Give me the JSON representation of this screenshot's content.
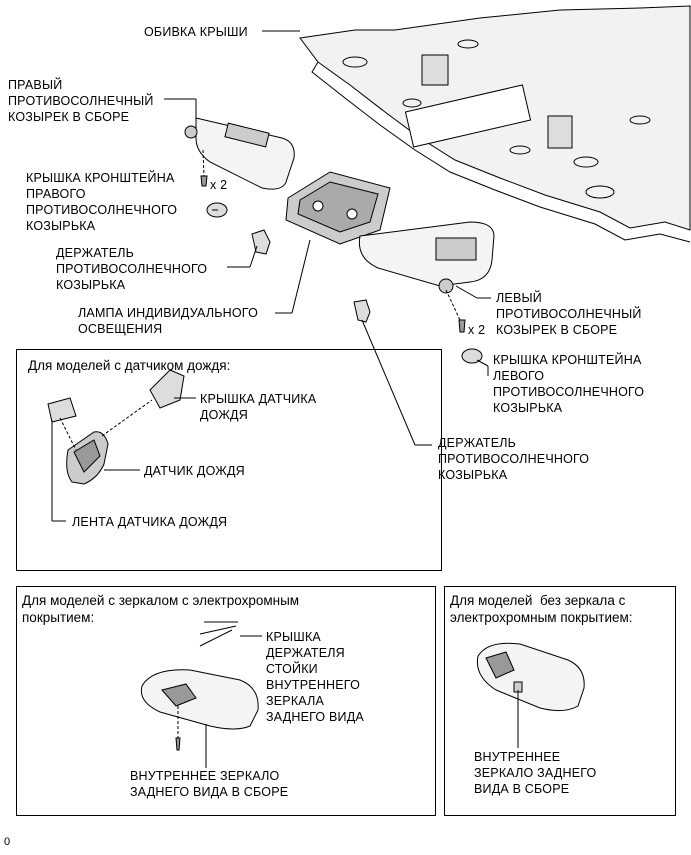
{
  "labels": {
    "headliner": "ОБИВКА КРЫШИ",
    "right_visor": "ПРАВЫЙ\nПРОТИВОСОЛНЕЧНЫЙ\nКОЗЫРЕК В СБОРЕ",
    "right_bracket_cover": "КРЫШКА КРОНШТЕЙНА\nПРАВОГО\nПРОТИВОСОЛНЕЧНОГО\nКОЗЫРЬКА",
    "visor_holder_left": "ДЕРЖАТЕЛЬ\nПРОТИВОСОЛНЕЧНОГО\nКОЗЫРЬКА",
    "personal_lamp": "ЛАМПА ИНДИВИДУАЛЬНОГО\nОСВЕЩЕНИЯ",
    "left_visor": "ЛЕВЫЙ\nПРОТИВОСОЛНЕЧНЫЙ\nКОЗЫРЕК В СБОРЕ",
    "left_bracket_cover": "КРЫШКА КРОНШТЕЙНА\nЛЕВОГО\nПРОТИВОСОЛНЕЧНОГО\nКОЗЫРЬКА",
    "visor_holder_right": "ДЕРЖАТЕЛЬ\nПРОТИВОСОЛНЕЧНОГО\nКОЗЫРЬКА",
    "qty_right": "x 2",
    "qty_left": "x 2"
  },
  "rain_box": {
    "title": "Для моделей с датчиком дождя:",
    "cover": "КРЫШКА ДАТЧИКА\nДОЖДЯ",
    "sensor": "ДАТЧИК ДОЖДЯ",
    "tape": "ЛЕНТА ДАТЧИКА ДОЖДЯ"
  },
  "ec_box": {
    "title": "Для моделей с зеркалом с электрохромным\nпокрытием:",
    "cover": "КРЫШКА\nДЕРЖАТЕЛЯ\nСТОЙКИ\nВНУТРЕННЕГО\nЗЕРКАЛА\nЗАДНЕГО ВИДА",
    "mirror": "ВНУТРЕННЕЕ ЗЕРКАЛО\nЗАДНЕГО ВИДА В СБОРЕ"
  },
  "no_ec_box": {
    "title": "Для моделей  без зеркала с\nэлектрохромным покрытием:",
    "mirror": "ВНУТРЕННЕЕ\nЗЕРКАЛО ЗАДНЕГО\nВИДА В СБОРЕ"
  },
  "footer": "0"
}
